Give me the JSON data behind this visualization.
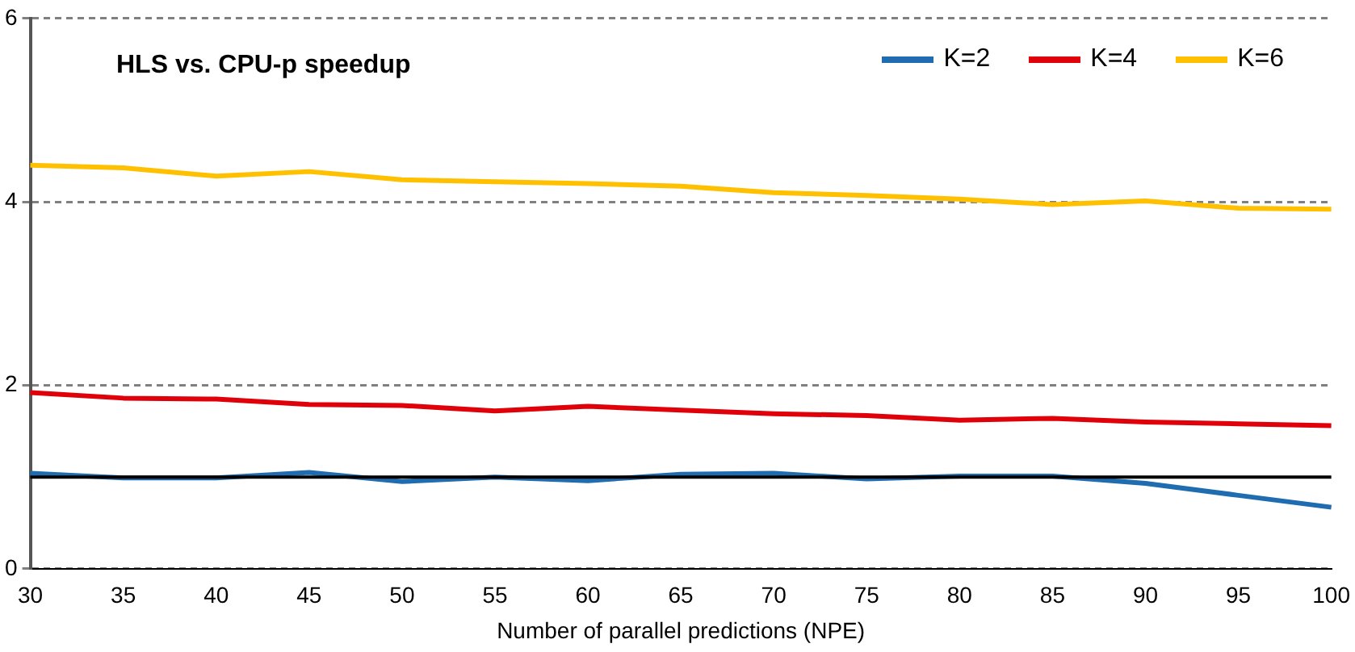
{
  "chart_data": {
    "type": "line",
    "title": "HLS vs. CPU-p speedup",
    "xlabel": "Number of parallel predictions (NPE)",
    "categories": [
      "30",
      "35",
      "40",
      "45",
      "50",
      "55",
      "60",
      "65",
      "70",
      "75",
      "80",
      "85",
      "90",
      "95",
      "100"
    ],
    "series": [
      {
        "name": "K=2",
        "color": "#1f6cb0",
        "values": [
          1.04,
          0.99,
          0.99,
          1.05,
          0.95,
          1.0,
          0.96,
          1.03,
          1.04,
          0.98,
          1.01,
          1.01,
          0.93,
          0.8,
          0.67
        ]
      },
      {
        "name": "K=4",
        "color": "#e0000a",
        "values": [
          1.92,
          1.86,
          1.85,
          1.79,
          1.78,
          1.72,
          1.77,
          1.73,
          1.69,
          1.67,
          1.62,
          1.64,
          1.6,
          1.58,
          1.56
        ]
      },
      {
        "name": "K=6",
        "color": "#ffc000",
        "values": [
          4.4,
          4.37,
          4.28,
          4.33,
          4.24,
          4.22,
          4.2,
          4.17,
          4.1,
          4.07,
          4.03,
          3.97,
          4.01,
          3.93,
          3.92
        ]
      }
    ],
    "ylim": [
      0,
      6
    ],
    "yticks": [
      0,
      2,
      4,
      6
    ],
    "grid": "y",
    "legend": "top right",
    "marker": "none",
    "line_style": "solid",
    "ref_lines": [
      {
        "axis": "y",
        "value": 1,
        "color": "#000000"
      }
    ]
  }
}
